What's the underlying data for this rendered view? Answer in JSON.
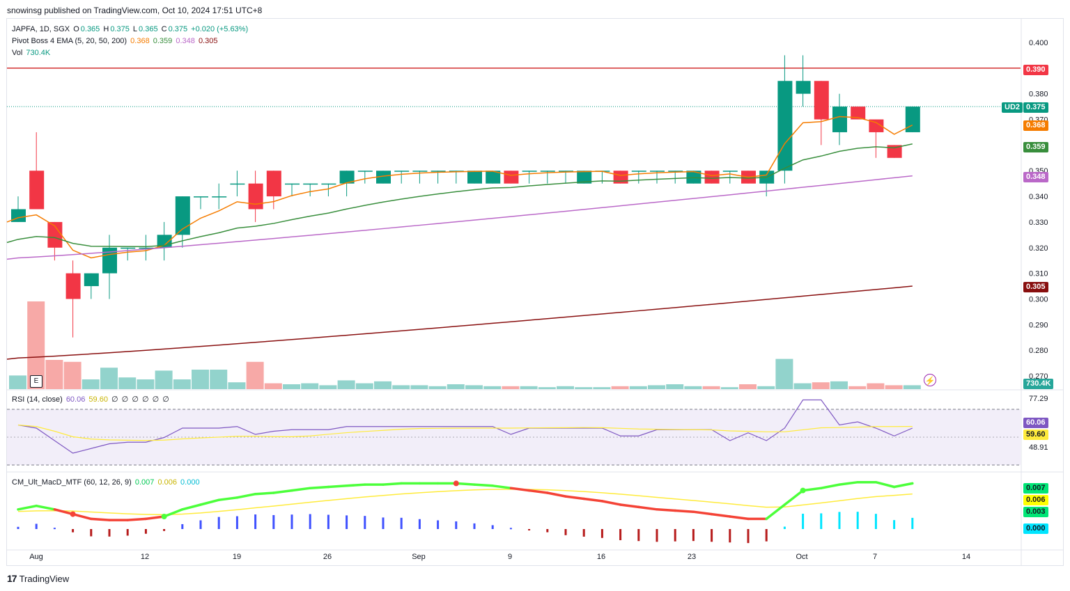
{
  "header": {
    "publisher_line": "snowinsg published on TradingView.com, Oct 10, 2024 17:51 UTC+8"
  },
  "legend": {
    "symbol": "JAPFA, 1D, SGX",
    "o_label": "O",
    "o": "0.365",
    "h_label": "H",
    "h": "0.375",
    "l_label": "L",
    "l": "0.365",
    "c_label": "C",
    "c": "0.375",
    "change": "+0.020 (+5.63%)",
    "ema_name": "Pivot Boss 4 EMA (5, 20, 50, 200)",
    "ema_values": [
      "0.368",
      "0.359",
      "0.348",
      "0.305"
    ],
    "vol_name": "Vol",
    "vol_value": "730.4K",
    "rsi_name": "RSI (14, close)",
    "rsi_values": [
      "60.06",
      "59.60",
      "∅",
      "∅",
      "∅",
      "∅",
      "∅",
      "∅"
    ],
    "macd_name": "CM_Ult_MacD_MTF (60, 12, 26, 9)",
    "macd_values": [
      "0.007",
      "0.006",
      "0.000"
    ]
  },
  "price_scale": {
    "ticks": [
      "0.400",
      "0.390",
      "0.380",
      "0.370",
      "0.360",
      "0.350",
      "0.340",
      "0.330",
      "0.320",
      "0.310",
      "0.300",
      "0.290",
      "0.280",
      "0.270"
    ],
    "labels": [
      {
        "text": "0.390",
        "color": "#f23645"
      },
      {
        "text": "0.375",
        "color": "#089981",
        "tag": "UD2"
      },
      {
        "text": "0.368",
        "color": "#f57c00"
      },
      {
        "text": "0.359",
        "color": "#388e3c"
      },
      {
        "text": "0.348",
        "color": "#ba68c8"
      },
      {
        "text": "0.305",
        "color": "#880e0e"
      },
      {
        "text": "730.4K",
        "color": "#26a69a"
      }
    ]
  },
  "rsi_scale": {
    "ticks": [
      "77.29",
      "48.91"
    ],
    "labels": [
      {
        "text": "60.06",
        "color": "#7e57c2"
      },
      {
        "text": "59.60",
        "color": "#ffeb3b"
      }
    ]
  },
  "macd_scale": {
    "labels": [
      {
        "text": "0.007",
        "color": "#00e676"
      },
      {
        "text": "0.006",
        "color": "#ffff00"
      },
      {
        "text": "0.003",
        "color": "#00e676"
      },
      {
        "text": "0.000",
        "color": "#00e5ff"
      }
    ]
  },
  "time_axis": [
    "Aug",
    "12",
    "19",
    "26",
    "Sep",
    "9",
    "16",
    "23",
    "Oct",
    "7",
    "14"
  ],
  "footer": {
    "brand": "TradingView",
    "logo": "17"
  },
  "icons": {
    "earnings": "E",
    "bolt": "⚡"
  },
  "chart_data": {
    "type": "candlestick",
    "title": "JAPFA, 1D, SGX",
    "y_range": [
      0.265,
      0.405
    ],
    "horizontal_line": 0.39,
    "candles": [
      {
        "o": 0.33,
        "h": 0.34,
        "l": 0.33,
        "c": 0.335
      },
      {
        "o": 0.35,
        "h": 0.365,
        "l": 0.335,
        "c": 0.335
      },
      {
        "o": 0.33,
        "h": 0.33,
        "l": 0.315,
        "c": 0.32
      },
      {
        "o": 0.31,
        "h": 0.315,
        "l": 0.285,
        "c": 0.3
      },
      {
        "o": 0.305,
        "h": 0.31,
        "l": 0.3,
        "c": 0.31
      },
      {
        "o": 0.31,
        "h": 0.325,
        "l": 0.3,
        "c": 0.32
      },
      {
        "o": 0.32,
        "h": 0.32,
        "l": 0.315,
        "c": 0.32
      },
      {
        "o": 0.32,
        "h": 0.325,
        "l": 0.315,
        "c": 0.32
      },
      {
        "o": 0.32,
        "h": 0.33,
        "l": 0.315,
        "c": 0.325
      },
      {
        "o": 0.325,
        "h": 0.34,
        "l": 0.32,
        "c": 0.34
      },
      {
        "o": 0.34,
        "h": 0.34,
        "l": 0.335,
        "c": 0.34
      },
      {
        "o": 0.34,
        "h": 0.345,
        "l": 0.335,
        "c": 0.34
      },
      {
        "o": 0.345,
        "h": 0.35,
        "l": 0.34,
        "c": 0.345
      },
      {
        "o": 0.345,
        "h": 0.35,
        "l": 0.33,
        "c": 0.335
      },
      {
        "o": 0.35,
        "h": 0.35,
        "l": 0.335,
        "c": 0.34
      },
      {
        "o": 0.345,
        "h": 0.345,
        "l": 0.34,
        "c": 0.345
      },
      {
        "o": 0.345,
        "h": 0.345,
        "l": 0.34,
        "c": 0.345
      },
      {
        "o": 0.345,
        "h": 0.345,
        "l": 0.34,
        "c": 0.345
      },
      {
        "o": 0.345,
        "h": 0.35,
        "l": 0.34,
        "c": 0.35
      },
      {
        "o": 0.35,
        "h": 0.35,
        "l": 0.345,
        "c": 0.35
      },
      {
        "o": 0.345,
        "h": 0.35,
        "l": 0.345,
        "c": 0.35
      },
      {
        "o": 0.35,
        "h": 0.35,
        "l": 0.345,
        "c": 0.35
      },
      {
        "o": 0.35,
        "h": 0.35,
        "l": 0.345,
        "c": 0.35
      },
      {
        "o": 0.35,
        "h": 0.35,
        "l": 0.345,
        "c": 0.35
      },
      {
        "o": 0.35,
        "h": 0.35,
        "l": 0.345,
        "c": 0.35
      },
      {
        "o": 0.345,
        "h": 0.35,
        "l": 0.345,
        "c": 0.35
      },
      {
        "o": 0.345,
        "h": 0.35,
        "l": 0.345,
        "c": 0.35
      },
      {
        "o": 0.35,
        "h": 0.35,
        "l": 0.345,
        "c": 0.345
      },
      {
        "o": 0.35,
        "h": 0.35,
        "l": 0.345,
        "c": 0.35
      },
      {
        "o": 0.35,
        "h": 0.35,
        "l": 0.345,
        "c": 0.35
      },
      {
        "o": 0.35,
        "h": 0.35,
        "l": 0.345,
        "c": 0.35
      },
      {
        "o": 0.345,
        "h": 0.35,
        "l": 0.345,
        "c": 0.35
      },
      {
        "o": 0.35,
        "h": 0.35,
        "l": 0.345,
        "c": 0.35
      },
      {
        "o": 0.35,
        "h": 0.35,
        "l": 0.345,
        "c": 0.345
      },
      {
        "o": 0.35,
        "h": 0.35,
        "l": 0.345,
        "c": 0.35
      },
      {
        "o": 0.35,
        "h": 0.35,
        "l": 0.345,
        "c": 0.35
      },
      {
        "o": 0.35,
        "h": 0.35,
        "l": 0.345,
        "c": 0.35
      },
      {
        "o": 0.345,
        "h": 0.35,
        "l": 0.345,
        "c": 0.35
      },
      {
        "o": 0.35,
        "h": 0.35,
        "l": 0.345,
        "c": 0.345
      },
      {
        "o": 0.35,
        "h": 0.35,
        "l": 0.345,
        "c": 0.35
      },
      {
        "o": 0.35,
        "h": 0.35,
        "l": 0.345,
        "c": 0.345
      },
      {
        "o": 0.345,
        "h": 0.35,
        "l": 0.34,
        "c": 0.35
      },
      {
        "o": 0.35,
        "h": 0.395,
        "l": 0.345,
        "c": 0.385
      },
      {
        "o": 0.38,
        "h": 0.395,
        "l": 0.375,
        "c": 0.385
      },
      {
        "o": 0.385,
        "h": 0.385,
        "l": 0.36,
        "c": 0.37
      },
      {
        "o": 0.365,
        "h": 0.38,
        "l": 0.36,
        "c": 0.375
      },
      {
        "o": 0.375,
        "h": 0.375,
        "l": 0.37,
        "c": 0.37
      },
      {
        "o": 0.37,
        "h": 0.37,
        "l": 0.355,
        "c": 0.365
      },
      {
        "o": 0.36,
        "h": 0.36,
        "l": 0.355,
        "c": 0.355
      },
      {
        "o": 0.365,
        "h": 0.375,
        "l": 0.365,
        "c": 0.375
      }
    ],
    "ema_series": [
      {
        "name": "EMA 5",
        "color": "#f57c00",
        "start": 0.33,
        "end": 0.368
      },
      {
        "name": "EMA 20",
        "color": "#388e3c",
        "start": 0.322,
        "end": 0.359
      },
      {
        "name": "EMA 50",
        "color": "#ba68c8",
        "start": 0.316,
        "end": 0.348
      },
      {
        "name": "EMA 200",
        "color": "#880e0e",
        "start": 0.277,
        "end": 0.305
      }
    ],
    "volume_last": "730.4K",
    "rsi": {
      "last": 60.06,
      "signal": 59.6,
      "upper": 70,
      "lower": 30,
      "max_label": 77.29,
      "min_label": 48.91
    },
    "macd": {
      "macd": 0.007,
      "signal": 0.006,
      "hist": 0.0
    }
  }
}
